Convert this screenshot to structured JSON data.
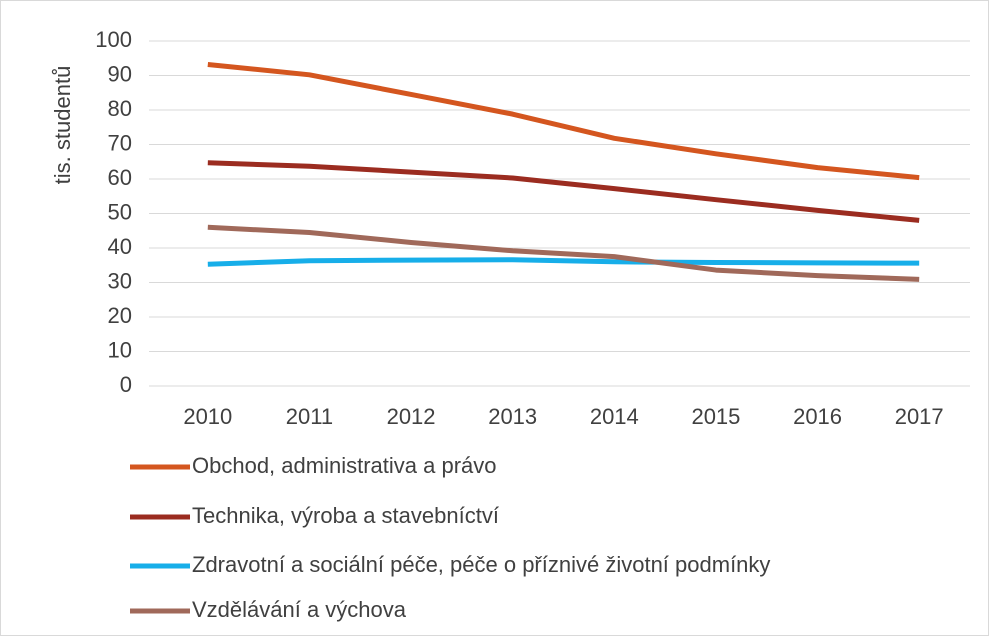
{
  "chart_data": {
    "type": "line",
    "ylabel": "tis. studentů",
    "categories": [
      "2010",
      "2011",
      "2012",
      "2013",
      "2014",
      "2015",
      "2016",
      "2017"
    ],
    "series": [
      {
        "name": "Obchod, administrativa a právo",
        "color": "#d4561f",
        "values": [
          93.2,
          90.2,
          84.5,
          78.8,
          71.8,
          67.3,
          63.3,
          60.4
        ]
      },
      {
        "name": "Technika, výroba a stavebníctví",
        "color": "#9b2c20",
        "values": [
          64.7,
          63.7,
          62.0,
          60.3,
          57.2,
          54.0,
          50.9,
          48.0
        ]
      },
      {
        "name": "Zdravotní a sociální péče, péče o příznivé životní podmínky",
        "color": "#17aee9",
        "values": [
          35.3,
          36.3,
          36.5,
          36.6,
          36.0,
          35.8,
          35.7,
          35.6
        ]
      },
      {
        "name": "Vzdělávání a výchova",
        "color": "#a0695a",
        "values": [
          46.0,
          44.5,
          41.6,
          39.2,
          37.5,
          33.6,
          32.0,
          30.9
        ]
      }
    ],
    "ylim": [
      0,
      100
    ],
    "yticks": [
      0,
      10,
      20,
      30,
      40,
      50,
      60,
      70,
      80,
      90,
      100
    ],
    "grid": true
  }
}
